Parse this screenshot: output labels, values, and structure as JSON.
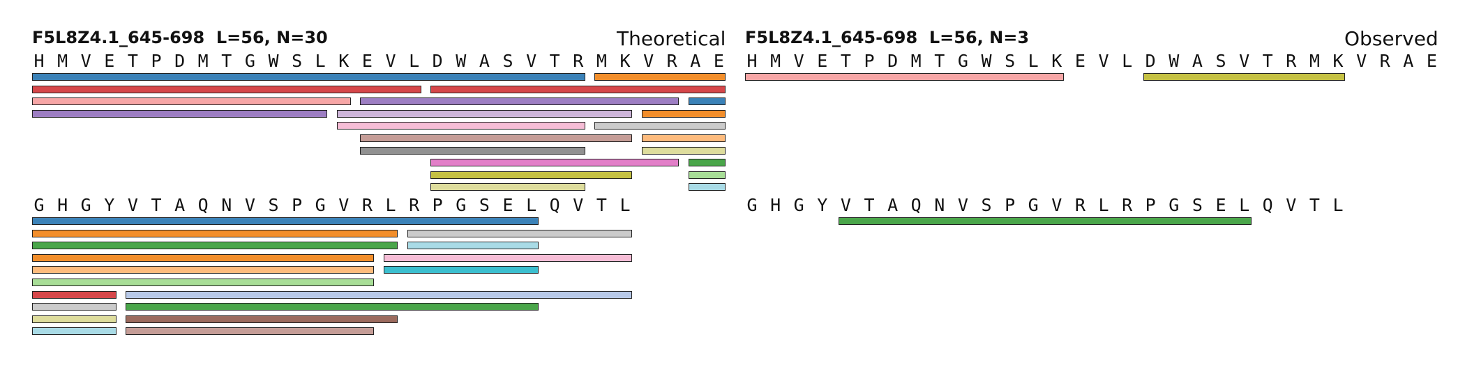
{
  "panels": [
    {
      "id": "theoretical",
      "title": "F5L8Z4.1_645-698  L=56, N=30",
      "label": "Theoretical",
      "blocks": [
        {
          "sequence": "HMVETPDMTGWSLKEVLDWASVTRMKVRAE",
          "peptides": [
            {
              "start": 1,
              "end": 24,
              "color": "#3b82b8"
            },
            {
              "start": 25,
              "end": 30,
              "color": "#f28e2b"
            },
            {
              "start": 1,
              "end": 17,
              "color": "#d6474a"
            },
            {
              "start": 18,
              "end": 30,
              "color": "#d6474a"
            },
            {
              "start": 1,
              "end": 14,
              "color": "#f7a6a6"
            },
            {
              "start": 15,
              "end": 28,
              "color": "#9d7ec3"
            },
            {
              "start": 29,
              "end": 30,
              "color": "#3b82b8"
            },
            {
              "start": 1,
              "end": 13,
              "color": "#9d7ec3"
            },
            {
              "start": 14,
              "end": 26,
              "color": "#cdb5d9"
            },
            {
              "start": 27,
              "end": 30,
              "color": "#f28e2b"
            },
            {
              "start": 14,
              "end": 24,
              "color": "#f6bdd6"
            },
            {
              "start": 25,
              "end": 30,
              "color": "#cbcbcb"
            },
            {
              "start": 15,
              "end": 26,
              "color": "#c59d97"
            },
            {
              "start": 27,
              "end": 30,
              "color": "#fdbb7d"
            },
            {
              "start": 15,
              "end": 24,
              "color": "#919191"
            },
            {
              "start": 27,
              "end": 30,
              "color": "#dedd9d"
            },
            {
              "start": 18,
              "end": 28,
              "color": "#e27fc8"
            },
            {
              "start": 29,
              "end": 30,
              "color": "#4aa64a"
            },
            {
              "start": 18,
              "end": 26,
              "color": "#c5c143"
            },
            {
              "start": 29,
              "end": 30,
              "color": "#a8de97"
            },
            {
              "start": 18,
              "end": 24,
              "color": "#dedd9d"
            },
            {
              "start": 29,
              "end": 30,
              "color": "#a9dbe6"
            }
          ]
        },
        {
          "sequence": "GHGYVTAQNVSPGVRLRPGSELQVTL",
          "peptides": [
            {
              "start": 1,
              "end": 22,
              "color": "#3b82b8"
            },
            {
              "start": 1,
              "end": 16,
              "color": "#f28e2b"
            },
            {
              "start": 17,
              "end": 26,
              "color": "#cbcbcb"
            },
            {
              "start": 1,
              "end": 16,
              "color": "#4aa64a"
            },
            {
              "start": 17,
              "end": 22,
              "color": "#a9dbe6"
            },
            {
              "start": 1,
              "end": 15,
              "color": "#f28e2b"
            },
            {
              "start": 16,
              "end": 26,
              "color": "#f6bdd6"
            },
            {
              "start": 1,
              "end": 15,
              "color": "#fdbb7d"
            },
            {
              "start": 16,
              "end": 22,
              "color": "#3bbfcf"
            },
            {
              "start": 1,
              "end": 15,
              "color": "#a8de97"
            },
            {
              "start": 1,
              "end": 4,
              "color": "#d6474a"
            },
            {
              "start": 5,
              "end": 26,
              "color": "#b8c9e8"
            },
            {
              "start": 1,
              "end": 4,
              "color": "#cbcbcb"
            },
            {
              "start": 5,
              "end": 22,
              "color": "#4aa64a"
            },
            {
              "start": 1,
              "end": 4,
              "color": "#dedd9d"
            },
            {
              "start": 5,
              "end": 16,
              "color": "#9c6b5e"
            },
            {
              "start": 1,
              "end": 4,
              "color": "#a9dbe6"
            },
            {
              "start": 5,
              "end": 15,
              "color": "#c59d97"
            }
          ]
        }
      ]
    },
    {
      "id": "observed",
      "title": "F5L8Z4.1_645-698  L=56, N=3",
      "label": "Observed",
      "blocks": [
        {
          "sequence": "HMVETPDMTGWSLKEVLDWASVTRMKVRAE",
          "peptides": [
            {
              "start": 1,
              "end": 14,
              "color": "#f7a6a6"
            },
            {
              "start": 18,
              "end": 26,
              "color": "#c5c143"
            }
          ]
        },
        {
          "sequence": "GHGYVTAQNVSPGVRLRPGSELQVTL",
          "peptides": [
            {
              "start": 5,
              "end": 22,
              "color": "#4aa64a"
            }
          ]
        }
      ]
    }
  ]
}
